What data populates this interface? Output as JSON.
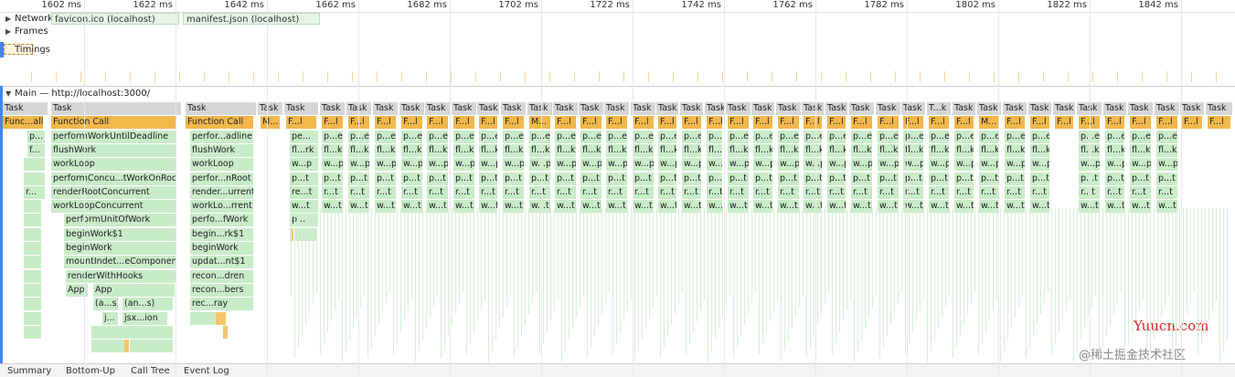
{
  "ruler": {
    "ticks": [
      {
        "label": "1602 ms",
        "at": 0
      },
      {
        "label": "1622 ms",
        "at": 1
      },
      {
        "label": "1642 ms",
        "at": 2
      },
      {
        "label": "1662 ms",
        "at": 3
      },
      {
        "label": "1682 ms",
        "at": 4
      },
      {
        "label": "1702 ms",
        "at": 5
      },
      {
        "label": "1722 ms",
        "at": 6
      },
      {
        "label": "1742 ms",
        "at": 7
      },
      {
        "label": "1762 ms",
        "at": 8
      },
      {
        "label": "1782 ms",
        "at": 9
      },
      {
        "label": "1802 ms",
        "at": 10
      },
      {
        "label": "1822 ms",
        "at": 11
      },
      {
        "label": "1842 ms",
        "at": 12
      }
    ]
  },
  "tracks": {
    "network": "Network",
    "network_requests": [
      "favicon.ico (localhost)",
      "manifest.json (localhost)"
    ],
    "frames": "Frames",
    "timings": "Timings",
    "main": "Main — http://localhost:3000/"
  },
  "flame": {
    "task": "Task",
    "function_call": "Function Call",
    "col1": [
      "Func...all",
      "p...",
      "f...",
      "r..."
    ],
    "col2": [
      "performWorkUntilDeadline",
      "flushWork",
      "workLoop",
      "performConcu...tWorkOnRoot",
      "renderRootConcurrent",
      "workLoopConcurrent",
      "performUnitOfWork",
      "beginWork$1",
      "beginWork",
      "mountIndet...eComponent",
      "renderWithHooks",
      "App",
      "App",
      "(a...s)",
      "(an...s)",
      "j...",
      "jsx...ion",
      "j..."
    ],
    "col3": [
      "perfor...adline",
      "flushWork",
      "workLoop",
      "perfor...nRoot",
      "render...urrent",
      "workLo...rrent",
      "perfo...fWork",
      "begin...rk$1",
      "beginWork",
      "updat...nt$1",
      "recon...dren",
      "recon...bers",
      "rec...ray"
    ],
    "short_fc": "F...l",
    "short_task_tk": "T...k",
    "short_m": "M...",
    "col4": [
      "pe...",
      "fl...rk",
      "w...p",
      "p...t",
      "re...t",
      "w...t",
      "p..."
    ],
    "short_stack": [
      "p...e",
      "fl...k",
      "w...p",
      "p...t",
      "r...t",
      "w...t"
    ]
  },
  "bottom_tabs": [
    "Summary",
    "Bottom-Up",
    "Call Tree",
    "Event Log"
  ],
  "watermark": "Yuucn.com",
  "watermark2": "@稀土掘金技术社区",
  "colors": {
    "task": "#d6d6d6",
    "function_call": "#f2b84b",
    "js": "#c9ecc8",
    "accent": "#4285f4"
  }
}
